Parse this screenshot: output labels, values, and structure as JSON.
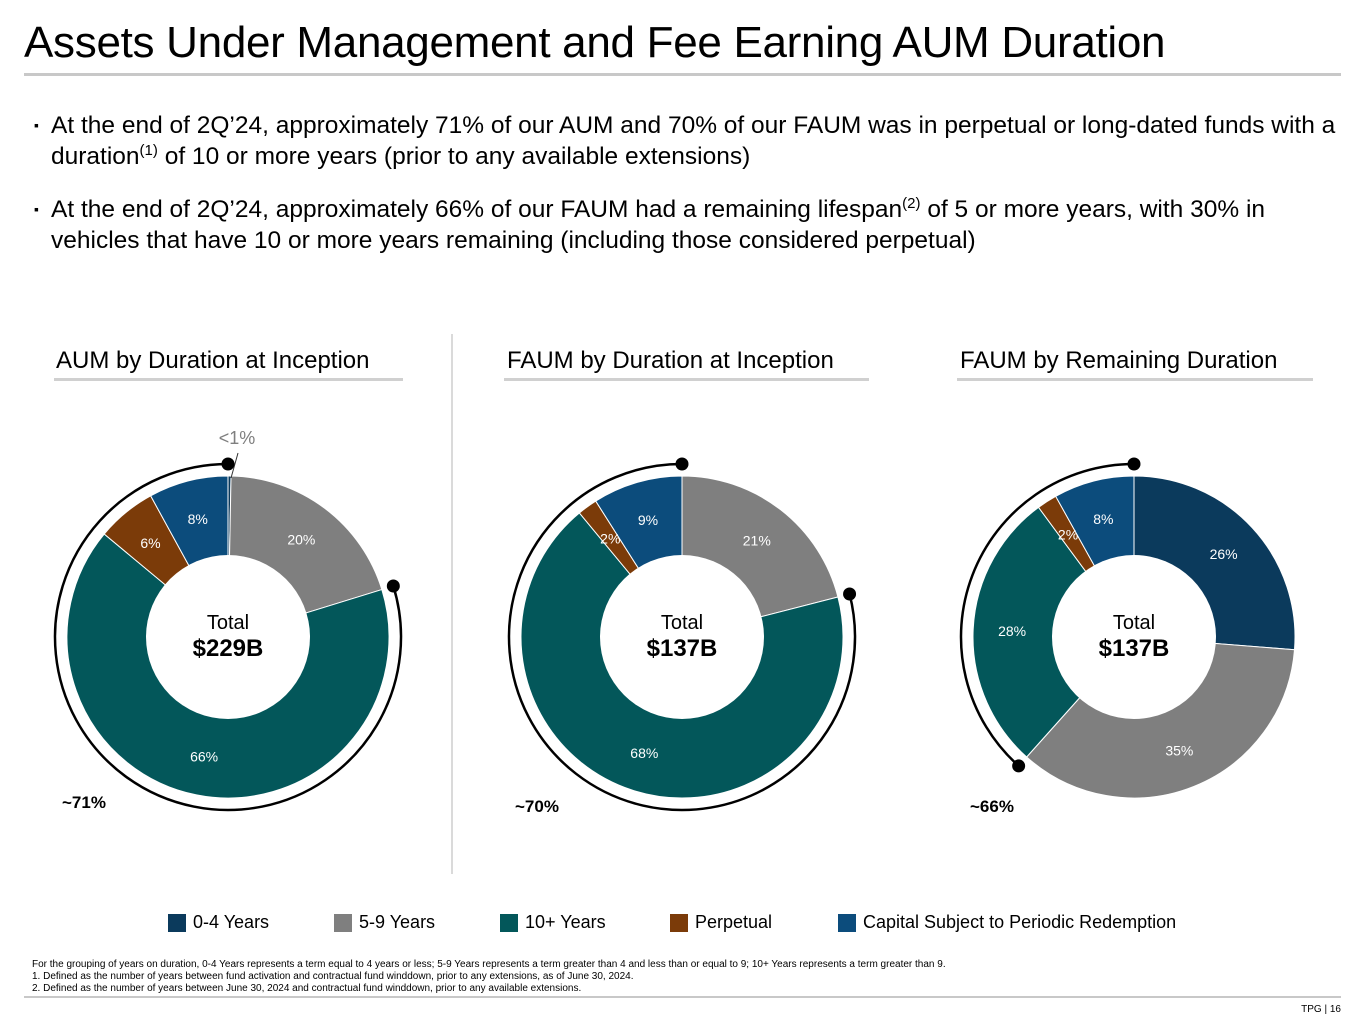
{
  "page": {
    "title": "Assets Under Management and Fee Earning AUM Duration",
    "bullets": [
      {
        "pre": "At the end of 2Q’24, approximately 71% of our AUM and 70% of our FAUM was in perpetual or long-dated funds with a duration",
        "sup": "(1)",
        "post": " of 10 or more years (prior to any available extensions)"
      },
      {
        "pre": "At the end of 2Q’24, approximately 66% of our FAUM had a remaining lifespan",
        "sup": "(2)",
        "post": " of 5 or more years, with 30% in vehicles that have 10 or more years remaining (including those considered perpetual)"
      }
    ],
    "bullet_marker": "▪",
    "footnotes": [
      "For the grouping of years on duration, 0-4 Years represents a term equal to 4 years or less; 5-9 Years represents a term greater than 4 and less than or equal to 9; 10+ Years represents a term greater than 9.",
      "1. Defined as the number of years between fund activation and contractual fund winddown, prior to any extensions, as of June 30, 2024.",
      "2. Defined as the number of years between June 30, 2024 and contractual fund winddown, prior to any available extensions."
    ],
    "page_number": "TPG | 16"
  },
  "legend": [
    {
      "label": "0-4 Years",
      "color": "#0b3a5c"
    },
    {
      "label": "5-9 Years",
      "color": "#7f7f7f"
    },
    {
      "label": "10+ Years",
      "color": "#03575a"
    },
    {
      "label": "Perpetual",
      "color": "#7b3b09"
    },
    {
      "label": "Capital Subject to Periodic Redemption",
      "color": "#0c4c7c"
    }
  ],
  "chart_data": [
    {
      "type": "pie",
      "variant": "donut",
      "title": "AUM by Duration at Inception",
      "center_label": "Total",
      "center_value": "$229B",
      "slices": [
        {
          "name": "0-4 Years",
          "value": 0.3,
          "label": "<1%",
          "color": "#0b3a5c"
        },
        {
          "name": "5-9 Years",
          "value": 20,
          "label": "20%",
          "color": "#7f7f7f"
        },
        {
          "name": "10+ Years",
          "value": 66,
          "label": "66%",
          "color": "#03575a"
        },
        {
          "name": "Perpetual",
          "value": 6,
          "label": "6%",
          "color": "#7b3b09"
        },
        {
          "name": "Capital Subject to Periodic Redemption",
          "value": 8,
          "label": "8%",
          "color": "#0c4c7c"
        }
      ],
      "bracket_label": "~71%"
    },
    {
      "type": "pie",
      "variant": "donut",
      "title": "FAUM by Duration at Inception",
      "center_label": "Total",
      "center_value": "$137B",
      "slices": [
        {
          "name": "5-9 Years",
          "value": 21,
          "label": "21%",
          "color": "#7f7f7f"
        },
        {
          "name": "10+ Years",
          "value": 68,
          "label": "68%",
          "color": "#03575a"
        },
        {
          "name": "Perpetual",
          "value": 2,
          "label": "2%",
          "color": "#7b3b09"
        },
        {
          "name": "Capital Subject to Periodic Redemption",
          "value": 9,
          "label": "9%",
          "color": "#0c4c7c"
        }
      ],
      "bracket_label": "~70%"
    },
    {
      "type": "pie",
      "variant": "donut",
      "title": "FAUM by Remaining Duration",
      "center_label": "Total",
      "center_value": "$137B",
      "slices": [
        {
          "name": "0-4 Years",
          "value": 26,
          "label": "26%",
          "color": "#0b3a5c"
        },
        {
          "name": "5-9 Years",
          "value": 35,
          "label": "35%",
          "color": "#7f7f7f"
        },
        {
          "name": "10+ Years",
          "value": 28,
          "label": "28%",
          "color": "#03575a"
        },
        {
          "name": "Perpetual",
          "value": 2,
          "label": "2%",
          "color": "#7b3b09"
        },
        {
          "name": "Capital Subject to Periodic Redemption",
          "value": 8,
          "label": "8%",
          "color": "#0c4c7c"
        }
      ],
      "bracket_label": "~66%"
    }
  ]
}
